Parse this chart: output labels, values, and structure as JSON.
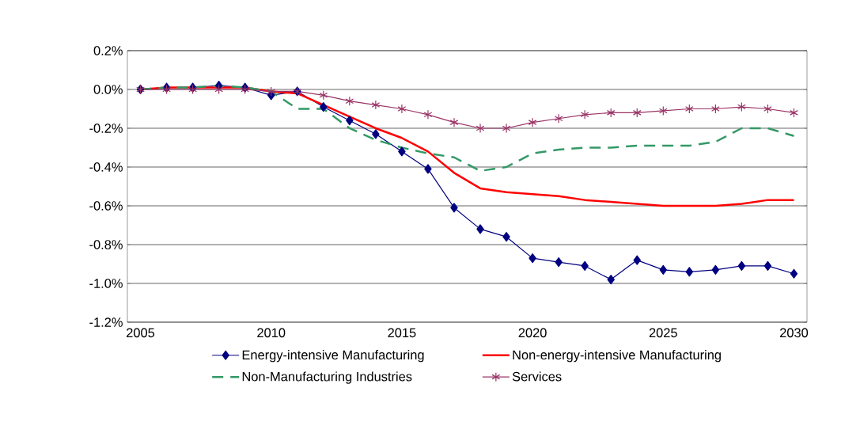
{
  "chart_data": {
    "type": "line",
    "x": [
      2005,
      2006,
      2007,
      2008,
      2009,
      2010,
      2011,
      2012,
      2013,
      2014,
      2015,
      2016,
      2017,
      2018,
      2019,
      2020,
      2021,
      2022,
      2023,
      2024,
      2025,
      2026,
      2027,
      2028,
      2029,
      2030
    ],
    "xlim": [
      2004.5,
      2030.5
    ],
    "xticks": [
      2005,
      2010,
      2015,
      2020,
      2025,
      2030
    ],
    "ylim": [
      -1.2,
      0.2
    ],
    "yticks": [
      {
        "value": -1.2,
        "label": "-1.2%"
      },
      {
        "value": -1.0,
        "label": "-1.0%"
      },
      {
        "value": -0.8,
        "label": "-0.8%"
      },
      {
        "value": -0.6,
        "label": "-0.6%"
      },
      {
        "value": -0.4,
        "label": "-0.4%"
      },
      {
        "value": -0.2,
        "label": "-0.2%"
      },
      {
        "value": 0.0,
        "label": "0.0%"
      },
      {
        "value": 0.2,
        "label": "0.2%"
      }
    ],
    "grid": "y",
    "legend": "bottom",
    "series": [
      {
        "name": "Energy-intensive Manufacturing",
        "color": "#000080",
        "marker": "diamond",
        "line_style": "solid",
        "values": [
          0,
          0.01,
          0.01,
          0.02,
          0.01,
          -0.03,
          -0.01,
          -0.09,
          -0.16,
          -0.23,
          -0.32,
          -0.41,
          -0.61,
          -0.72,
          -0.76,
          -0.87,
          -0.89,
          -0.91,
          -0.98,
          -0.88,
          -0.93,
          -0.94,
          -0.93,
          -0.91,
          -0.91,
          -0.95
        ]
      },
      {
        "name": "Non-energy-intensive Manufacturing",
        "color": "#ff0000",
        "marker": "none",
        "line_style": "solid",
        "values": [
          0,
          0.01,
          0.01,
          0.01,
          0.01,
          -0.01,
          -0.02,
          -0.08,
          -0.14,
          -0.2,
          -0.25,
          -0.32,
          -0.43,
          -0.51,
          -0.53,
          -0.54,
          -0.55,
          -0.57,
          -0.58,
          -0.59,
          -0.6,
          -0.6,
          -0.6,
          -0.59,
          -0.57,
          -0.57
        ]
      },
      {
        "name": "Non-Manufacturing Industries",
        "color": "#339966",
        "marker": "none",
        "line_style": "dashed",
        "values": [
          0,
          0.01,
          0.01,
          0.02,
          0.01,
          -0.01,
          -0.1,
          -0.1,
          -0.2,
          -0.26,
          -0.3,
          -0.33,
          -0.35,
          -0.42,
          -0.4,
          -0.33,
          -0.31,
          -0.3,
          -0.3,
          -0.29,
          -0.29,
          -0.29,
          -0.27,
          -0.2,
          -0.2,
          -0.24
        ]
      },
      {
        "name": "Services",
        "color": "#993366",
        "marker": "cross",
        "line_style": "solid",
        "values": [
          0,
          0.0,
          0.0,
          0.0,
          0.0,
          -0.01,
          -0.01,
          -0.03,
          -0.06,
          -0.08,
          -0.1,
          -0.13,
          -0.17,
          -0.2,
          -0.2,
          -0.17,
          -0.15,
          -0.13,
          -0.12,
          -0.12,
          -0.11,
          -0.1,
          -0.1,
          -0.09,
          -0.1,
          -0.12
        ]
      }
    ]
  }
}
